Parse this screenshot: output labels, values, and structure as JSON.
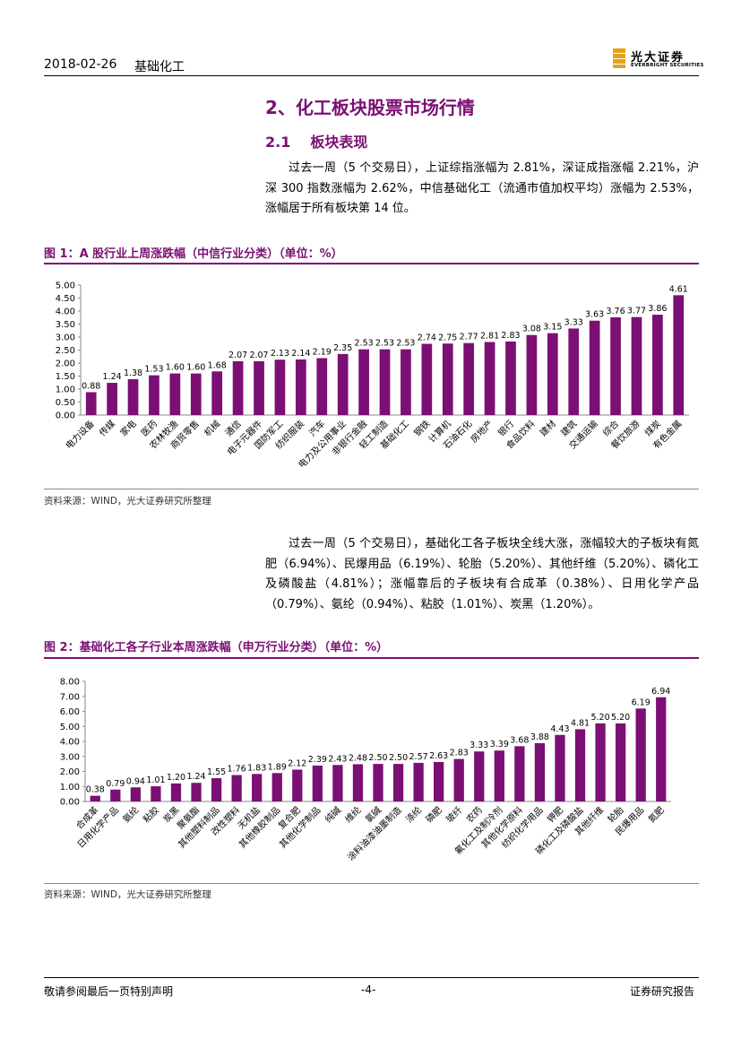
{
  "header": {
    "date": "2018-02-26",
    "sector": "基础化工",
    "logo_cn": "光大证券",
    "logo_en": "EVERBRIGHT SECURITIES",
    "brand_color": "#7b0f74",
    "logo_color": "#e3a31f"
  },
  "section": {
    "title": "2、化工板块股票市场行情",
    "sub_num": "2.1",
    "sub_title": "板块表现"
  },
  "paragraph1": "过去一周（5 个交易日），上证综指涨幅为 2.81%，深证成指涨幅 2.21%，沪深 300 指数涨幅为 2.62%，中信基础化工（流通市值加权平均）涨幅为 2.53%，涨幅居于所有板块第 14 位。",
  "figure1": {
    "title": "图 1：A 股行业上周涨跌幅（中信行业分类）（单位：%）",
    "source": "资料来源：WIND，光大证券研究所整理"
  },
  "paragraph2": "过去一周（5 个交易日），基础化工各子板块全线大涨，涨幅较大的子板块有氮肥（6.94%）、民爆用品（6.19%）、轮胎（5.20%）、其他纤维（5.20%）、磷化工及磷酸盐（4.81%）；涨幅靠后的子板块有合成革（0.38%）、日用化学产品（0.79%）、氨纶（0.94%）、粘胶（1.01%）、炭黑（1.20%）。",
  "figure2": {
    "title": "图 2：基础化工各子行业本周涨跌幅（申万行业分类）（单位：%）",
    "source": "资料来源：WIND，光大证券研究所整理"
  },
  "footer": {
    "left": "敬请参阅最后一页特别声明",
    "page": "-4-",
    "right": "证券研究报告"
  },
  "chart_data": [
    {
      "type": "bar",
      "title": "A 股行业上周涨跌幅（中信行业分类）（单位：%）",
      "bar_color": "#7b0f74",
      "ylim": [
        0,
        5
      ],
      "yticks": [
        "0.00",
        "0.50",
        "1.00",
        "1.50",
        "2.00",
        "2.50",
        "3.00",
        "3.50",
        "4.00",
        "4.50",
        "5.00"
      ],
      "categories": [
        "电力设备",
        "传媒",
        "家电",
        "医药",
        "农林牧渔",
        "商贸零售",
        "机械",
        "通信",
        "电子元器件",
        "国防军工",
        "纺织服装",
        "汽车",
        "电力及公用事业",
        "非银行金融",
        "轻工制造",
        "基础化工",
        "钢铁",
        "计算机",
        "石油石化",
        "房地产",
        "银行",
        "食品饮料",
        "建材",
        "建筑",
        "交通运输",
        "综合",
        "餐饮旅游",
        "煤炭",
        "有色金属"
      ],
      "values": [
        0.88,
        1.24,
        1.38,
        1.53,
        1.6,
        1.6,
        1.68,
        2.07,
        2.07,
        2.13,
        2.14,
        2.19,
        2.35,
        2.53,
        2.53,
        2.53,
        2.74,
        2.75,
        2.77,
        2.81,
        2.83,
        3.08,
        3.15,
        3.33,
        3.63,
        3.76,
        3.77,
        3.86,
        4.61
      ],
      "labels": [
        "0.88",
        "1.24",
        "1.38",
        "1.53",
        "1.60",
        "1.60",
        "1.68",
        "2.07",
        "2.07",
        "2.13",
        "2.14",
        "2.19",
        "2.35",
        "2.53",
        "2.53",
        "2.53",
        "2.74",
        "2.75",
        "2.77",
        "2.81",
        "2.83",
        "3.08",
        "3.15",
        "3.33",
        "3.63",
        "3.76",
        "3.77",
        "3.86",
        "4.61"
      ]
    },
    {
      "type": "bar",
      "title": "基础化工各子行业本周涨跌幅（申万行业分类）（单位：%）",
      "bar_color": "#7b0f74",
      "ylim": [
        0,
        8
      ],
      "yticks": [
        "0.00",
        "1.00",
        "2.00",
        "3.00",
        "4.00",
        "5.00",
        "6.00",
        "7.00",
        "8.00"
      ],
      "categories": [
        "合成革",
        "日用化学产品",
        "氨纶",
        "粘胶",
        "炭黑",
        "聚氨酯",
        "其他塑料制品",
        "改性塑料",
        "无机盐",
        "其他橡胶制品",
        "复合肥",
        "其他化学制品",
        "纯碱",
        "维纶",
        "氯碱",
        "涂料油漆油墨制造",
        "涤纶",
        "磷肥",
        "玻纤",
        "农药",
        "氟化工及制冷剂",
        "其他化学原料",
        "纺织化学用品",
        "钾肥",
        "磷化工及磷酸盐",
        "其他纤维",
        "轮胎",
        "民爆用品",
        "氮肥"
      ],
      "values": [
        0.38,
        0.79,
        0.94,
        1.01,
        1.2,
        1.24,
        1.55,
        1.76,
        1.83,
        1.89,
        2.12,
        2.39,
        2.43,
        2.48,
        2.5,
        2.5,
        2.57,
        2.63,
        2.83,
        3.33,
        3.39,
        3.68,
        3.88,
        4.43,
        4.81,
        5.2,
        5.2,
        6.19,
        6.94
      ],
      "labels": [
        "0.38",
        "0.79",
        "0.94",
        "1.01",
        "1.20",
        "1.24",
        "1.55",
        "1.76",
        "1.83",
        "1.89",
        "2.12",
        "2.39",
        "2.43",
        "2.48",
        "2.50",
        "2.50",
        "2.57",
        "2.63",
        "2.83",
        "3.33",
        "3.39",
        "3.68",
        "3.88",
        "4.43",
        "4.81",
        "5.20",
        "5.20",
        "6.19",
        "6.94"
      ]
    }
  ]
}
